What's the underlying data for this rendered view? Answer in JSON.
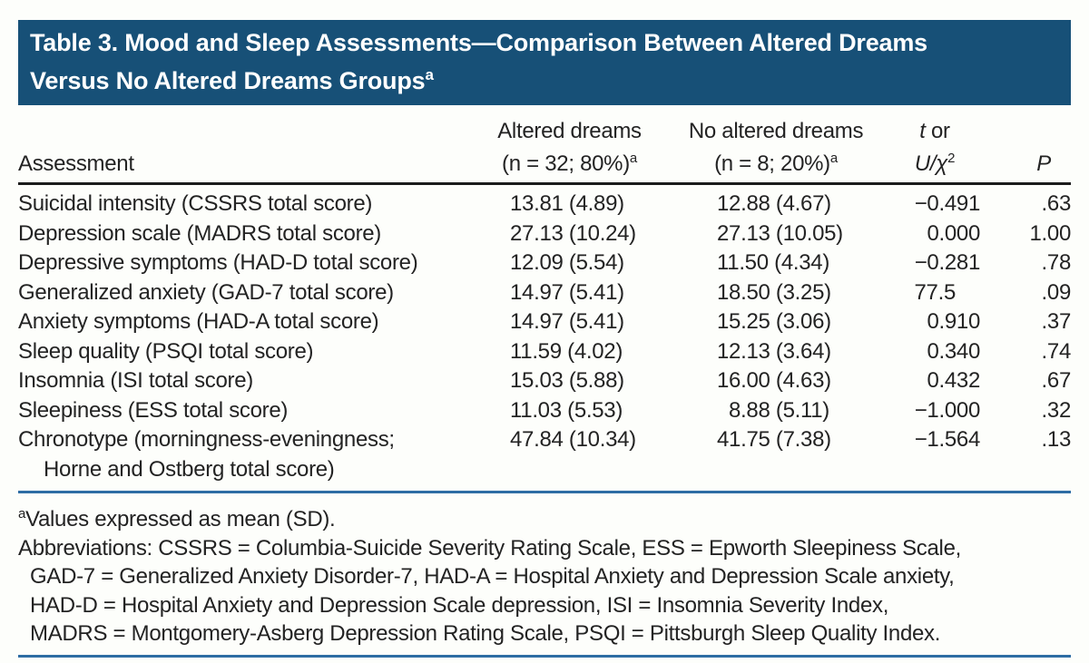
{
  "colors": {
    "title_bar_bg": "#175077",
    "title_text": "#FFFFFF",
    "rule_blue": "#2E6DA4",
    "rule_dark": "#1C1C1C",
    "body_text": "#232323"
  },
  "header": {
    "title_line1": "Table 3. Mood and Sleep Assessments—Comparison Between Altered Dreams",
    "title_line2": "Versus No Altered Dreams Groups",
    "title_sup": "a"
  },
  "table": {
    "col_headers": {
      "assessment": "Assessment",
      "altered_line1": "Altered dreams",
      "altered_line2": "(n = 32; 80%)",
      "altered_sup": "a",
      "no_altered_line1": "No altered dreams",
      "no_altered_line2": "(n = 8; 20%)",
      "no_altered_sup": "a",
      "stat_t": "t",
      "stat_or": " or",
      "stat_u": "U/",
      "stat_chi": "χ",
      "stat_chi_sup": "2",
      "p": "P"
    },
    "rows": [
      {
        "label": "Suicidal intensity (CSSRS total score)",
        "altered": "13.81 (4.89)",
        "no_altered": "12.88 (4.67)",
        "stat": "−0.491",
        "p": ".63"
      },
      {
        "label": "Depression scale (MADRS total score)",
        "altered": "27.13 (10.24)",
        "no_altered": "27.13 (10.05)",
        "stat": "0.000",
        "p": "1.00"
      },
      {
        "label": "Depressive symptoms (HAD-D total score)",
        "altered": "12.09 (5.54)",
        "no_altered": "11.50 (4.34)",
        "stat": "−0.281",
        "p": ".78"
      },
      {
        "label": "Generalized anxiety (GAD-7 total score)",
        "altered": "14.97 (5.41)",
        "no_altered": "18.50 (3.25)",
        "stat": "77.5",
        "p": ".09"
      },
      {
        "label": "Anxiety symptoms (HAD-A total score)",
        "altered": "14.97 (5.41)",
        "no_altered": "15.25 (3.06)",
        "stat": "0.910",
        "p": ".37"
      },
      {
        "label": "Sleep quality (PSQI total score)",
        "altered": "11.59 (4.02)",
        "no_altered": "12.13 (3.64)",
        "stat": "0.340",
        "p": ".74"
      },
      {
        "label": "Insomnia (ISI total score)",
        "altered": "15.03 (5.88)",
        "no_altered": "16.00 (4.63)",
        "stat": "0.432",
        "p": ".67"
      },
      {
        "label": "Sleepiness (ESS total score)",
        "altered": "11.03 (5.53)",
        "no_altered": "8.88 (5.11)",
        "stat": "−1.000",
        "p": ".32"
      },
      {
        "label": "Chronotype (morningness-eveningness;",
        "label2": "Horne and Ostberg total score)",
        "altered": "47.84 (10.34)",
        "no_altered": "41.75 (7.38)",
        "stat": "−1.564",
        "p": ".13"
      }
    ]
  },
  "footnotes": {
    "note_sup": "a",
    "note": "Values expressed as mean (SD).",
    "abbrev_line1": "Abbreviations: CSSRS = Columbia-Suicide Severity Rating Scale, ESS = Epworth Sleepiness Scale,",
    "abbrev_line2": "GAD-7 = Generalized Anxiety Disorder-7, HAD-A = Hospital Anxiety and Depression Scale anxiety,",
    "abbrev_line3": "HAD-D = Hospital Anxiety and Depression Scale depression, ISI = Insomnia Severity Index,",
    "abbrev_line4": "MADRS = Montgomery-Asberg Depression Rating Scale, PSQI = Pittsburgh Sleep Quality Index."
  }
}
